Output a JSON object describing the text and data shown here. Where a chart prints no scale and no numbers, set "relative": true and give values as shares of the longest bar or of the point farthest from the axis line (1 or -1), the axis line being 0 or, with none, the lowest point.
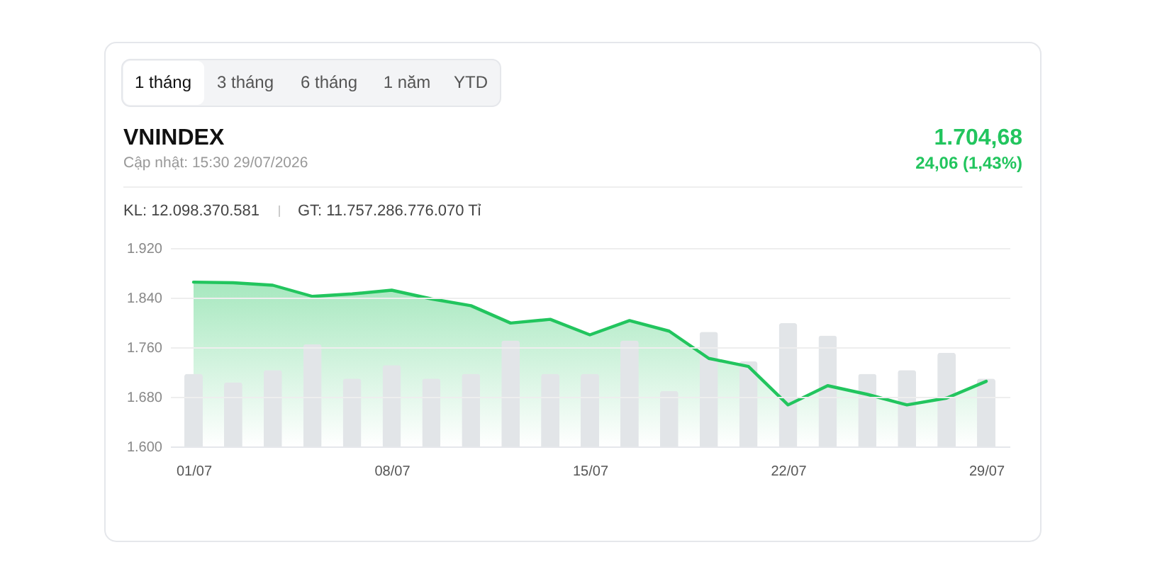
{
  "chart_data": [
    {
      "type": "area",
      "title": "VNINDEX",
      "subtitle": "Cập nhật: 15:30 29/07/2026",
      "annotations": [
        "1 tháng",
        "3 tháng",
        "6 tháng",
        "1 năm",
        "YTD",
        "1.704,68",
        "24,06 (1,43%)",
        "KL: 12.098.370.581",
        "GT: 11.757.286.776.070 Tỉ"
      ],
      "categories": [
        "01/07",
        null,
        null,
        null,
        null,
        "08/07",
        null,
        null,
        null,
        null,
        "15/07",
        null,
        null,
        null,
        null,
        "22/07",
        null,
        null,
        null,
        null,
        "29/07"
      ],
      "series": [
        {
          "color": "#22c55e",
          "values": [
            1865,
            1864,
            1860,
            1842,
            1846,
            1852,
            1838,
            1827,
            1799,
            1805,
            1780,
            1803,
            1786,
            1742,
            1729,
            1667,
            1698,
            1684,
            1667,
            1678,
            1705
          ]
        }
      ],
      "ylim": [
        1600,
        1920
      ],
      "yticks": [
        {
          "value": 1600,
          "label": "1.600"
        },
        {
          "value": 1680,
          "label": "1.680"
        },
        {
          "value": 1760,
          "label": "1.760"
        },
        {
          "value": 1840,
          "label": "1.840"
        },
        {
          "value": 1920,
          "label": "1.920"
        }
      ],
      "grid": "y",
      "marker": "none",
      "line_style": "solid"
    },
    {
      "type": "bar",
      "relative": true,
      "series": [
        {
          "color": "#e2e5e8",
          "values": [
            0.59,
            0.52,
            0.62,
            0.83,
            0.55,
            0.66,
            0.55,
            0.59,
            0.86,
            0.59,
            0.59,
            0.86,
            0.45,
            0.93,
            0.69,
            1,
            0.9,
            0.59,
            0.62,
            0.76,
            0.55
          ]
        }
      ]
    }
  ]
}
